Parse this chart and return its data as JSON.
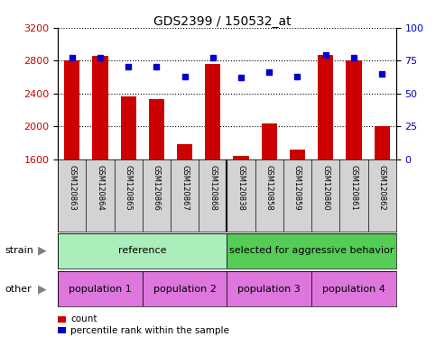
{
  "title": "GDS2399 / 150532_at",
  "samples": [
    "GSM120863",
    "GSM120864",
    "GSM120865",
    "GSM120866",
    "GSM120867",
    "GSM120868",
    "GSM120838",
    "GSM120858",
    "GSM120859",
    "GSM120860",
    "GSM120861",
    "GSM120862"
  ],
  "counts": [
    2800,
    2860,
    2360,
    2330,
    1780,
    2760,
    1640,
    2030,
    1720,
    2870,
    2800,
    2000
  ],
  "percentiles": [
    77,
    77,
    70,
    70,
    63,
    77,
    62,
    66,
    63,
    79,
    77,
    65
  ],
  "ylim_left": [
    1600,
    3200
  ],
  "ylim_right": [
    0,
    100
  ],
  "yticks_left": [
    1600,
    2000,
    2400,
    2800,
    3200
  ],
  "yticks_right": [
    0,
    25,
    50,
    75,
    100
  ],
  "bar_color": "#cc0000",
  "dot_color": "#0000cc",
  "tick_area_color": "#d3d3d3",
  "strain_colors": [
    "#90ee90",
    "#66cc66"
  ],
  "other_color": "#dd77dd",
  "separator_index": 6,
  "strain_labels": [
    "reference",
    "selected for aggressive behavior"
  ],
  "other_labels": [
    "population 1",
    "population 2",
    "population 3",
    "population 4"
  ],
  "legend_count_label": "count",
  "legend_pct_label": "percentile rank within the sample"
}
